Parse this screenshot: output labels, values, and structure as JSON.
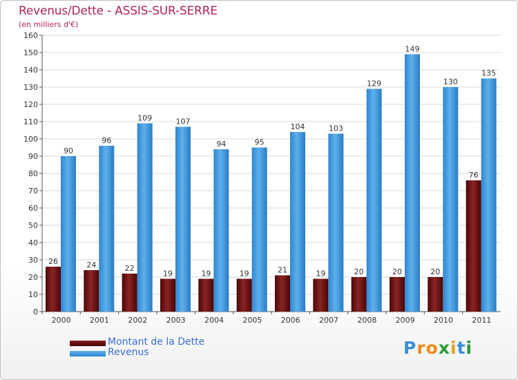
{
  "header": {
    "title": "Revenus/Dette - ASSIS-SUR-SERRE",
    "subtitle": "(en milliers d'€)"
  },
  "colors": {
    "title": "#b0235a",
    "dette": "#6b0d0d",
    "revenus": "#3a93dc",
    "axis_text": "#333333",
    "grid": "#d9d9d9",
    "legend_text": "#3a6fd8"
  },
  "chart_data": {
    "type": "bar",
    "title": "Revenus/Dette - ASSIS-SUR-SERRE",
    "ylabel": "(en milliers d'€)",
    "xlabel": "",
    "ylim": [
      0,
      160
    ],
    "ytick_step": 10,
    "grid": true,
    "categories": [
      "2000",
      "2001",
      "2002",
      "2003",
      "2004",
      "2005",
      "2006",
      "2007",
      "2008",
      "2009",
      "2010",
      "2011"
    ],
    "series": [
      {
        "name": "Montant de la Dette",
        "values": [
          26,
          24,
          22,
          19,
          19,
          19,
          21,
          19,
          20,
          20,
          20,
          76
        ]
      },
      {
        "name": "Revenus",
        "values": [
          90,
          96,
          109,
          107,
          94,
          95,
          104,
          103,
          129,
          149,
          130,
          135
        ]
      }
    ]
  },
  "legend": {
    "dette_label": "Montant de la Dette",
    "revenus_label": "Revenus"
  },
  "logo": {
    "letters": [
      "P",
      "r",
      "o",
      "x",
      "i",
      "t",
      "i"
    ],
    "colors": [
      "#3a8fd8",
      "#f08a1e",
      "#f08a1e",
      "#2a9a3a",
      "#e8a020",
      "#3a8fd8",
      "#2a9a3a"
    ]
  }
}
